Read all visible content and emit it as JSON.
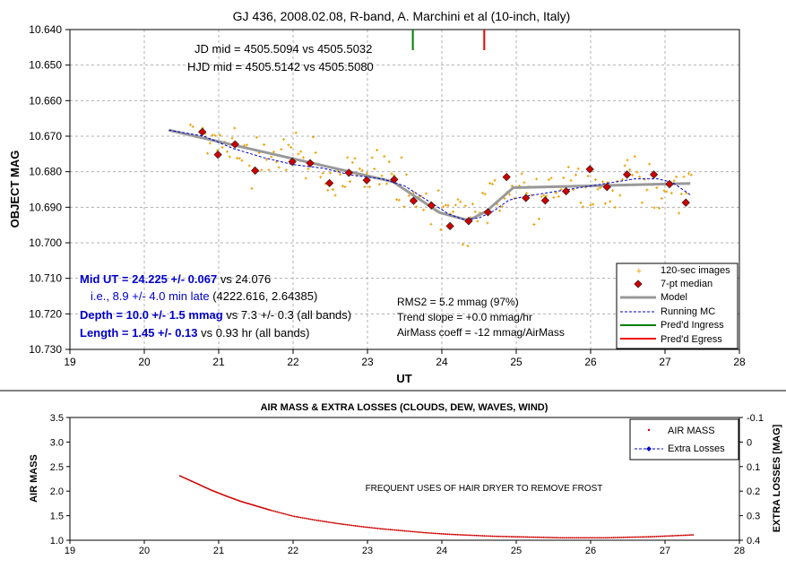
{
  "chart_data": [
    {
      "type": "scatter",
      "title": "GJ 436, 2008.02.08, R-band, A. Marchini et al (10-inch, Italy)",
      "xlabel": "UT",
      "ylabel": "OBJECT MAG",
      "xlim": [
        19,
        28
      ],
      "ylim": [
        10.64,
        10.73
      ],
      "y_inverted": true,
      "grid": true,
      "legend_position": "bottom-right",
      "x_ticks": [
        "19",
        "20",
        "21",
        "22",
        "23",
        "24",
        "25",
        "26",
        "27",
        "28"
      ],
      "y_ticks": [
        "10.640",
        "10.650",
        "10.660",
        "10.670",
        "10.680",
        "10.690",
        "10.700",
        "10.710",
        "10.720",
        "10.730"
      ],
      "legend": [
        "120-sec images",
        "7-pt median",
        "Model",
        "Running MC",
        "Pred'd Ingress",
        "Pred'd Egress"
      ],
      "annotations": {
        "jd": "JD mid = 4505.5094 vs 4505.5032",
        "hjd": "HJD mid = 4505.5142 vs 4505.5080",
        "mid_ut_bold": "Mid UT = 24.225 +/- 0.067",
        "mid_ut_rest": " vs 24.076",
        "late": "i.e., 8.9 +/- 4.0 min late",
        "late_rest": " (4222.616, 2.64385)",
        "depth_bold": "Depth = 10.0 +/- 1.5 mmag",
        "depth_rest": " vs 7.3 +/- 0.3 (all bands)",
        "length_bold": "Length = 1.45 +/- 0.13",
        "length_rest": " vs 0.93 hr (all bands)",
        "rms": "RMS2 = 5.2 mmag (97%)",
        "trend": "Trend slope = +0.0 mmag/hr",
        "airmass_coeff": "AirMass coeff = -12 mmag/AirMass"
      },
      "series": [
        {
          "name": "120-sec images",
          "kind": "scatter",
          "generated": true,
          "segments": [
            [
              20.6,
              10.669
            ],
            [
              21.0,
              10.673
            ],
            [
              21.5,
              10.676
            ],
            [
              22.0,
              10.6775
            ],
            [
              22.5,
              10.6795
            ],
            [
              23.0,
              10.6815
            ],
            [
              23.35,
              10.682
            ],
            [
              23.6,
              10.686
            ],
            [
              23.9,
              10.691
            ],
            [
              24.2,
              10.6935
            ],
            [
              24.5,
              10.6925
            ],
            [
              24.8,
              10.688
            ],
            [
              25.0,
              10.686
            ],
            [
              25.5,
              10.6865
            ],
            [
              26.0,
              10.685
            ],
            [
              26.5,
              10.6835
            ],
            [
              27.0,
              10.684
            ],
            [
              27.35,
              10.6855
            ]
          ],
          "color": "#e8a000"
        },
        {
          "name": "7-pt median",
          "kind": "marker",
          "color": "#cc0000",
          "x": [
            20.78,
            20.99,
            21.22,
            21.49,
            21.99,
            22.23,
            22.49,
            22.75,
            22.99,
            23.36,
            23.62,
            23.86,
            24.11,
            24.36,
            24.62,
            24.87,
            25.13,
            25.39,
            25.67,
            25.99,
            26.22,
            26.49,
            26.85,
            27.06,
            27.28
          ],
          "y": [
            10.6688,
            10.6752,
            10.6723,
            10.6797,
            10.6772,
            10.6776,
            10.6832,
            10.6803,
            10.6824,
            10.6822,
            10.6882,
            10.6895,
            10.6953,
            10.6939,
            10.6914,
            10.6815,
            10.6874,
            10.6881,
            10.6855,
            10.6793,
            10.6843,
            10.6808,
            10.6808,
            10.6835,
            10.6887
          ]
        },
        {
          "name": "Model",
          "kind": "line",
          "color": "#999999",
          "x": [
            20.33,
            23.34,
            23.97,
            24.36,
            24.6,
            24.96,
            27.34
          ],
          "y": [
            10.6683,
            10.6828,
            10.6915,
            10.6937,
            10.6911,
            10.6845,
            10.6833
          ]
        },
        {
          "name": "Running MC",
          "kind": "line",
          "color": "#0000cc",
          "x": [
            20.33,
            20.8,
            21.2,
            21.6,
            22.0,
            22.4,
            22.8,
            23.2,
            23.5,
            23.8,
            24.1,
            24.3,
            24.5,
            24.7,
            24.9,
            25.1,
            25.4,
            25.7,
            26.0,
            26.3,
            26.6,
            26.9,
            27.1,
            27.34
          ],
          "y": [
            10.6683,
            10.67,
            10.6735,
            10.676,
            10.678,
            10.679,
            10.681,
            10.682,
            10.684,
            10.688,
            10.692,
            10.6935,
            10.693,
            10.691,
            10.688,
            10.687,
            10.686,
            10.685,
            10.684,
            10.683,
            10.682,
            10.682,
            10.683,
            10.6865
          ]
        },
        {
          "name": "Pred'd Ingress",
          "kind": "vline",
          "color": "#008000",
          "x": 23.61
        },
        {
          "name": "Pred'd Egress",
          "kind": "vline",
          "color": "#ee0000",
          "x": 24.57
        }
      ]
    },
    {
      "type": "scatter",
      "title": "AIR MASS & EXTRA LOSSES (CLOUDS, DEW, WAVES, WIND)",
      "ylabel": "AIR MASS",
      "y2label": "EXTRA LOSSES [MAG]",
      "xlim": [
        19,
        28
      ],
      "ylim": [
        1.0,
        3.5
      ],
      "y2lim": [
        -0.1,
        0.4
      ],
      "x_ticks": [
        "19",
        "20",
        "21",
        "22",
        "23",
        "24",
        "25",
        "26",
        "27",
        "28"
      ],
      "y_ticks": [
        "1.0",
        "1.5",
        "2.0",
        "2.5",
        "3.0",
        "3.5"
      ],
      "y2_ticks": [
        "-0.1",
        "0",
        "0.1",
        "0.2",
        "0.3",
        "0.4"
      ],
      "legend": [
        "AIR MASS",
        "Extra Losses"
      ],
      "legend_position": "top-right",
      "note": "FREQUENT USES OF HAIR DRYER TO REMOVE FROST",
      "series": [
        {
          "name": "AIR MASS",
          "kind": "scatter",
          "color": "#cc0000",
          "x": [
            20.48,
            20.7,
            20.9,
            21.1,
            21.3,
            21.5,
            21.7,
            22.0,
            22.3,
            22.6,
            22.9,
            23.2,
            23.5,
            23.8,
            24.1,
            24.4,
            24.7,
            25.0,
            25.3,
            25.6,
            25.9,
            26.2,
            26.5,
            26.8,
            27.1,
            27.4
          ],
          "y": [
            2.31,
            2.16,
            2.02,
            1.9,
            1.79,
            1.7,
            1.61,
            1.49,
            1.41,
            1.34,
            1.28,
            1.23,
            1.19,
            1.15,
            1.12,
            1.1,
            1.08,
            1.07,
            1.06,
            1.05,
            1.05,
            1.05,
            1.06,
            1.07,
            1.09,
            1.11
          ]
        },
        {
          "name": "Extra Losses",
          "kind": "line",
          "color": "#0000cc",
          "x": [],
          "y": []
        }
      ]
    }
  ]
}
